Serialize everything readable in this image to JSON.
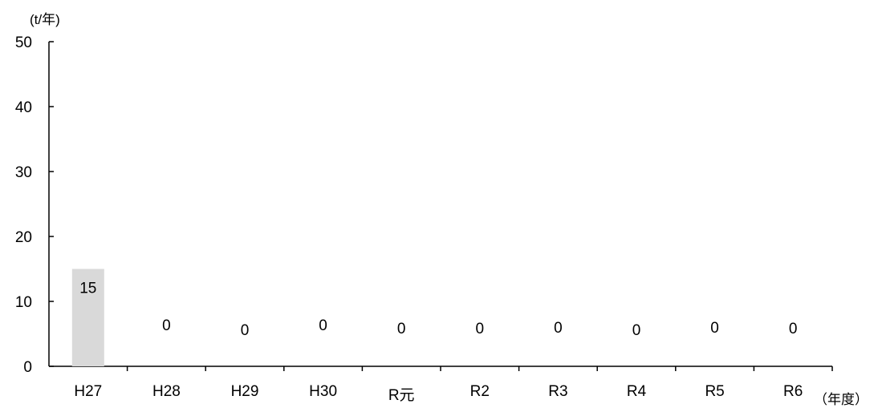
{
  "chart_data": {
    "type": "bar",
    "title": "",
    "ylabel": "(t/年)",
    "xlabel": "（年度）",
    "categories": [
      "H27",
      "H28",
      "H29",
      "H30",
      "R元",
      "R2",
      "R3",
      "R4",
      "R5",
      "R6"
    ],
    "values": [
      15,
      0,
      0,
      0,
      0,
      0,
      0,
      0,
      0,
      0
    ],
    "data_labels": [
      "15",
      "0",
      "0",
      "0",
      "0",
      "0",
      "0",
      "0",
      "0",
      "0"
    ],
    "ylim": [
      0,
      50
    ],
    "yticks": [
      0,
      10,
      20,
      30,
      40,
      50
    ],
    "grid": false,
    "bar_color": "#d9d9d9",
    "axis_color": "#000000"
  }
}
